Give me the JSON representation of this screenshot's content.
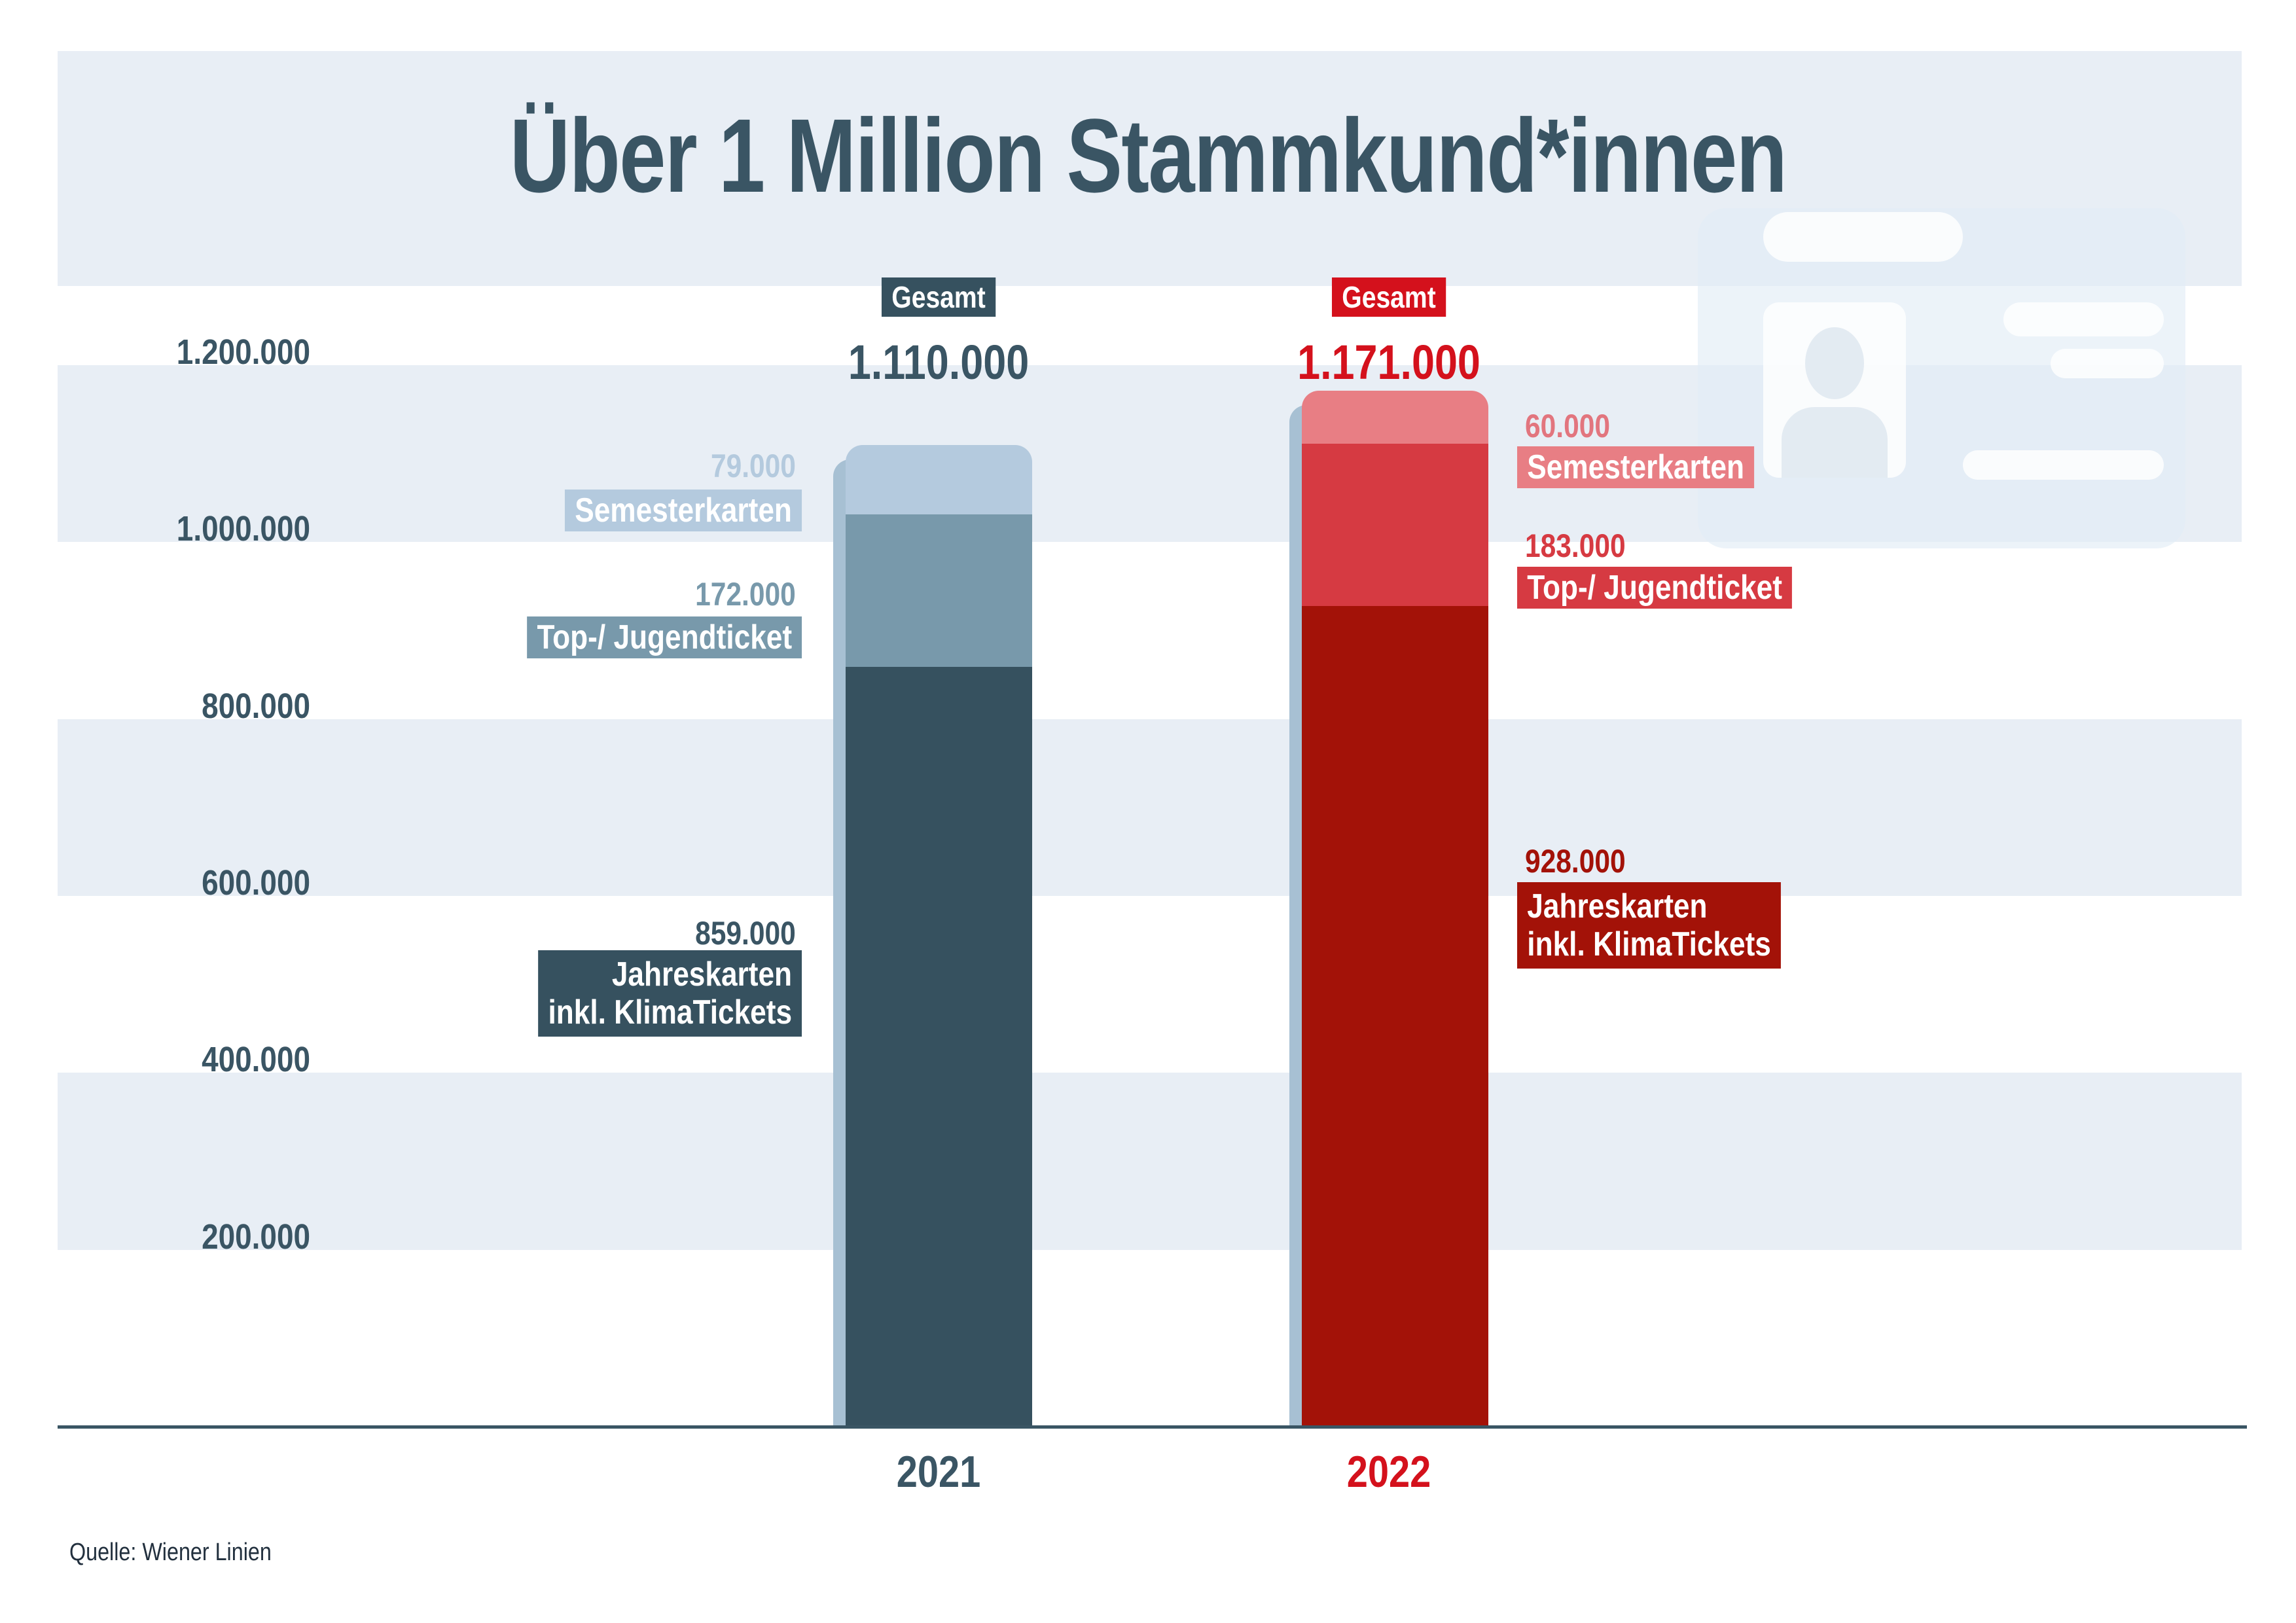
{
  "title": "Über 1 Million Stammkund*innen",
  "source": "Quelle: Wiener Linien",
  "y_axis": {
    "labels": [
      "1.200.000",
      "1.000.000",
      "800.000",
      "600.000",
      "400.000",
      "200.000"
    ]
  },
  "chart_data": {
    "type": "bar",
    "stacked": true,
    "title": "Über 1 Million Stammkund*innen",
    "categories": [
      "2021",
      "2022"
    ],
    "series": [
      {
        "name": "Jahreskarten inkl. KlimaTickets",
        "values": [
          859000,
          928000
        ]
      },
      {
        "name": "Top-/ Jugendticket",
        "values": [
          172000,
          183000
        ]
      },
      {
        "name": "Semesterkarten",
        "values": [
          79000,
          60000
        ]
      }
    ],
    "totals": [
      1110000,
      1171000
    ],
    "total_label": "Gesamt",
    "ylabel": "",
    "xlabel": "",
    "ylim": [
      0,
      1200000
    ],
    "y_tick_step": 200000,
    "grid": "striped-bands",
    "legend_position": "none",
    "source": "Quelle: Wiener Linien",
    "colors": {
      "2021": [
        "#36515f",
        "#7899ab",
        "#b4cade"
      ],
      "2022": [
        "#a31208",
        "#d63a42",
        "#e87e84"
      ],
      "shadow": "#a7c0d3",
      "accent_red": "#d4111c",
      "accent_teal": "#3a5564",
      "band": "#e8eef5"
    }
  },
  "labels_2021": {
    "gesamt": "Gesamt",
    "total": "1.110.000",
    "year": "2021",
    "sem_value": "79.000",
    "sem_name": "Semesterkarten",
    "top_value": "172.000",
    "top_name": "Top-/ Jugendticket",
    "jahres_value": "859.000",
    "jahres_line1": "Jahreskarten",
    "jahres_line2": "inkl. KlimaTickets"
  },
  "labels_2022": {
    "gesamt": "Gesamt",
    "total": "1.171.000",
    "year": "2022",
    "sem_value": "60.000",
    "sem_name": "Semesterkarten",
    "top_value": "183.000",
    "top_name": "Top-/ Jugendticket",
    "jahres_value": "928.000",
    "jahres_line1": "Jahreskarten",
    "jahres_line2": "inkl. KlimaTickets"
  }
}
